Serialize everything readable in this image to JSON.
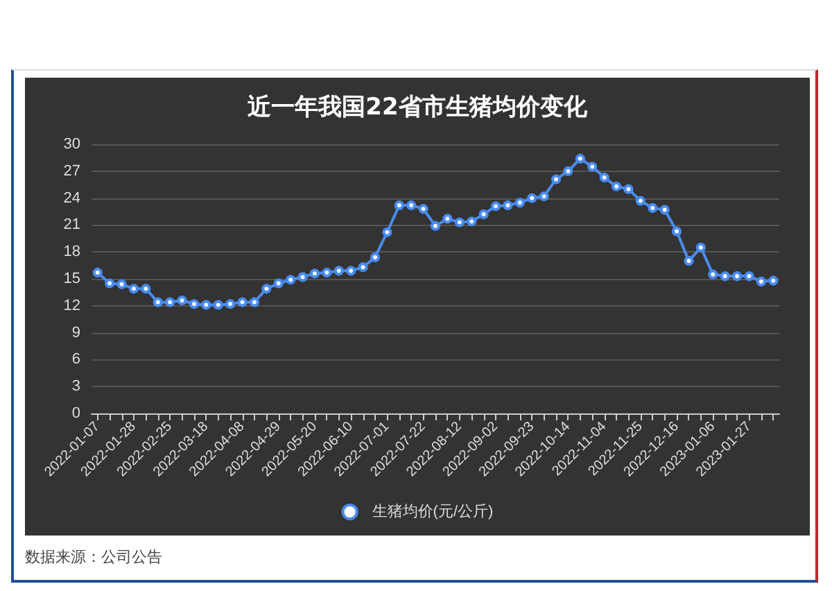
{
  "chart_data": {
    "type": "line",
    "title": "近一年我国22省市生猪均价变化",
    "categories": [
      "2022-01-07",
      null,
      null,
      "2022-01-28",
      null,
      null,
      "2022-02-25",
      null,
      null,
      "2022-03-18",
      null,
      null,
      "2022-04-08",
      null,
      null,
      "2022-04-29",
      null,
      null,
      "2022-05-20",
      null,
      null,
      "2022-06-10",
      null,
      null,
      "2022-07-01",
      null,
      null,
      "2022-07-22",
      null,
      null,
      "2022-08-12",
      null,
      null,
      "2022-09-02",
      null,
      null,
      "2022-09-23",
      null,
      null,
      "2022-10-14",
      null,
      null,
      "2022-11-04",
      null,
      null,
      "2022-11-25",
      null,
      null,
      "2022-12-16",
      null,
      null,
      "2023-01-06",
      null,
      null,
      "2023-01-27",
      null,
      null
    ],
    "series": [
      {
        "name": "生猪均价(元/公斤)",
        "color": "#4a8cf0",
        "values": [
          15.7,
          14.5,
          14.4,
          13.9,
          13.9,
          12.4,
          12.4,
          12.6,
          12.2,
          12.1,
          12.1,
          12.2,
          12.4,
          12.4,
          13.9,
          14.5,
          14.9,
          15.2,
          15.6,
          15.7,
          15.9,
          15.9,
          16.3,
          17.4,
          20.2,
          23.2,
          23.2,
          22.8,
          20.9,
          21.7,
          21.3,
          21.4,
          22.2,
          23.1,
          23.2,
          23.5,
          24.0,
          24.2,
          26.1,
          27.0,
          28.4,
          27.5,
          26.3,
          25.3,
          25.0,
          23.7,
          22.9,
          22.7,
          20.3,
          17.0,
          18.5,
          15.5,
          15.3,
          15.3,
          15.3,
          14.7,
          14.8
        ]
      }
    ],
    "ylim": [
      0,
      30
    ],
    "yticks": [
      0,
      3,
      6,
      9,
      12,
      15,
      18,
      21,
      24,
      27,
      30
    ],
    "grid": "y",
    "legend": "bottom",
    "marker": "circle",
    "line_style": "solid",
    "annotations": [
      "数据来源：公司公告"
    ]
  }
}
